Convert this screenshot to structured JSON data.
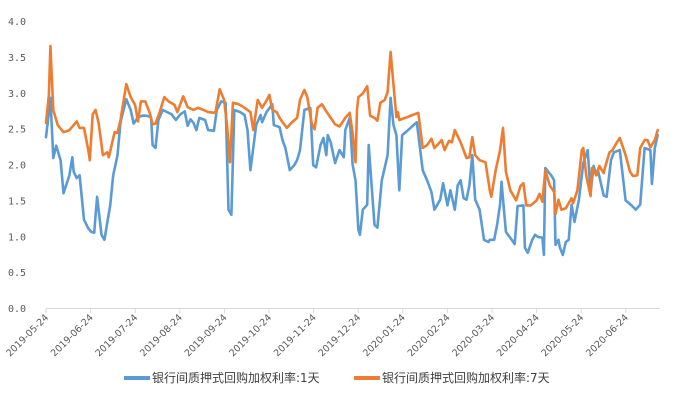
{
  "chart_data": {
    "type": "line",
    "title": "",
    "xlabel": "",
    "ylabel": "",
    "x_unit": "days since 2019-05-24",
    "xlim": [
      0,
      419
    ],
    "ylim": [
      0,
      4
    ],
    "y_ticks": [
      "0.0",
      "0.5",
      "1.0",
      "1.5",
      "2.0",
      "2.5",
      "3.0",
      "3.5",
      "4.0"
    ],
    "x_tick_labels": [
      "2019-05-24",
      "2019-06-24",
      "2019-07-24",
      "2019-08-24",
      "2019-09-24",
      "2019-10-24",
      "2019-11-24",
      "2019-12-24",
      "2020-01-24",
      "2020-02-24",
      "2020-03-24",
      "2020-04-24",
      "2020-05-24",
      "2020-06-24"
    ],
    "grid": false,
    "legend_position": "bottom",
    "series": [
      {
        "name": "银行间质押式回购加权利率:1天",
        "color": "#5B9BD5",
        "x": [
          0,
          2,
          3,
          5,
          7,
          10,
          12,
          16,
          18,
          19,
          21,
          23,
          26,
          29,
          31,
          33,
          35,
          38,
          40,
          44,
          46,
          49,
          51,
          55,
          58,
          60,
          63,
          66,
          69,
          72,
          73,
          75,
          77,
          80,
          84,
          86,
          89,
          92,
          95,
          97,
          99,
          101,
          103,
          105,
          109,
          111,
          115,
          117,
          120,
          123,
          125,
          127,
          129,
          133,
          136,
          138,
          140,
          144,
          147,
          148,
          151,
          155,
          156,
          160,
          162,
          164,
          167,
          170,
          172,
          174,
          177,
          181,
          183,
          185,
          188,
          190,
          192,
          193,
          195,
          198,
          201,
          204,
          205,
          208,
          210,
          212,
          214,
          215,
          217,
          220,
          221,
          223,
          225,
          227,
          230,
          234,
          236,
          238,
          240,
          242,
          244,
          248,
          254,
          258,
          261,
          264,
          266,
          270,
          272,
          275,
          277,
          280,
          282,
          284,
          286,
          288,
          290,
          292,
          294,
          297,
          300,
          303,
          304,
          307,
          309,
          311,
          312,
          315,
          319,
          321,
          323,
          327,
          328,
          330,
          333,
          335,
          337,
          340,
          341,
          342,
          346,
          348,
          349,
          351,
          352,
          354,
          356,
          358,
          360,
          362,
          365,
          368,
          371,
          373,
          375,
          377,
          378,
          382,
          384,
          387,
          389,
          393,
          397,
          401,
          404,
          407,
          410,
          414,
          415,
          417,
          419
        ],
        "values": [
          2.38,
          2.73,
          2.93,
          2.09,
          2.26,
          2.06,
          1.6,
          1.85,
          2.1,
          1.9,
          1.81,
          1.85,
          1.23,
          1.11,
          1.06,
          1.05,
          1.55,
          1.02,
          0.95,
          1.43,
          1.85,
          2.13,
          2.59,
          2.91,
          2.76,
          2.57,
          2.66,
          2.68,
          2.68,
          2.66,
          2.27,
          2.23,
          2.62,
          2.76,
          2.72,
          2.7,
          2.62,
          2.7,
          2.74,
          2.54,
          2.63,
          2.58,
          2.48,
          2.65,
          2.62,
          2.48,
          2.47,
          2.76,
          2.88,
          2.86,
          1.37,
          1.3,
          2.76,
          2.73,
          2.69,
          2.48,
          1.92,
          2.55,
          2.69,
          2.59,
          2.73,
          2.84,
          2.55,
          2.52,
          2.34,
          2.23,
          1.92,
          1.99,
          2.06,
          2.2,
          2.76,
          2.79,
          1.99,
          1.96,
          2.27,
          2.37,
          2.13,
          2.41,
          2.31,
          2.02,
          2.2,
          2.1,
          2.48,
          2.65,
          2.0,
          1.78,
          1.09,
          1.02,
          1.37,
          1.44,
          2.27,
          1.71,
          1.16,
          1.12,
          1.78,
          2.13,
          2.93,
          2.55,
          2.41,
          1.64,
          2.41,
          2.48,
          2.59,
          1.92,
          1.78,
          1.62,
          1.37,
          1.51,
          1.74,
          1.43,
          1.64,
          1.37,
          1.71,
          1.78,
          1.53,
          1.51,
          1.71,
          2.13,
          1.51,
          1.37,
          0.95,
          0.92,
          0.95,
          0.95,
          1.16,
          1.45,
          1.76,
          1.06,
          0.95,
          0.89,
          1.42,
          1.43,
          0.84,
          0.77,
          0.95,
          1.02,
          0.99,
          0.98,
          0.74,
          1.95,
          1.85,
          1.78,
          0.88,
          0.95,
          0.84,
          0.74,
          0.92,
          0.95,
          1.44,
          1.2,
          1.51,
          2.02,
          2.2,
          1.6,
          1.98,
          1.85,
          1.92,
          1.57,
          1.55,
          2.06,
          2.17,
          2.2,
          1.5,
          1.43,
          1.37,
          1.44,
          2.23,
          2.2,
          1.73,
          2.23,
          2.41
        ]
      },
      {
        "name": "银行间质押式回购加权利率:7天",
        "color": "#ED7D31",
        "x": [
          0,
          2,
          3,
          5,
          8,
          12,
          16,
          21,
          23,
          26,
          29,
          30,
          32,
          34,
          36,
          39,
          42,
          43,
          47,
          49,
          51,
          55,
          58,
          61,
          63,
          65,
          68,
          71,
          73,
          75,
          78,
          81,
          84,
          88,
          90,
          94,
          97,
          101,
          104,
          108,
          111,
          116,
          119,
          122,
          124,
          126,
          128,
          132,
          136,
          140,
          142,
          145,
          148,
          151,
          153,
          155,
          158,
          160,
          162,
          165,
          168,
          172,
          174,
          177,
          179,
          182,
          184,
          186,
          189,
          192,
          195,
          198,
          201,
          205,
          208,
          210,
          212,
          213,
          214,
          217,
          220,
          222,
          225,
          227,
          229,
          232,
          234,
          236,
          238,
          240,
          241,
          242,
          246,
          251,
          255,
          258,
          261,
          264,
          266,
          268,
          271,
          273,
          276,
          278,
          280,
          284,
          286,
          288,
          290,
          292,
          294,
          297,
          301,
          304,
          305,
          308,
          311,
          313,
          315,
          318,
          322,
          325,
          327,
          329,
          332,
          336,
          338,
          340,
          342,
          345,
          348,
          349,
          351,
          353,
          356,
          360,
          361,
          364,
          367,
          368,
          370,
          373,
          374,
          377,
          379,
          382,
          383,
          386,
          388,
          391,
          393,
          397,
          400,
          402,
          405,
          407,
          410,
          412,
          414,
          417,
          419
        ],
        "values": [
          2.58,
          2.97,
          3.65,
          2.76,
          2.55,
          2.45,
          2.48,
          2.6,
          2.51,
          2.51,
          2.2,
          2.06,
          2.7,
          2.76,
          2.58,
          2.13,
          2.17,
          2.1,
          2.45,
          2.44,
          2.62,
          3.12,
          2.94,
          2.83,
          2.6,
          2.88,
          2.88,
          2.72,
          2.56,
          2.57,
          2.74,
          2.94,
          2.88,
          2.83,
          2.73,
          2.95,
          2.8,
          2.76,
          2.79,
          2.76,
          2.73,
          2.72,
          3.05,
          2.9,
          2.55,
          2.03,
          2.86,
          2.84,
          2.79,
          2.73,
          2.48,
          2.9,
          2.79,
          2.89,
          2.97,
          2.76,
          2.73,
          2.65,
          2.59,
          2.51,
          2.58,
          2.65,
          2.9,
          3.04,
          2.94,
          2.57,
          2.49,
          2.79,
          2.84,
          2.74,
          2.65,
          2.56,
          2.53,
          2.65,
          2.72,
          2.44,
          2.03,
          2.76,
          2.94,
          2.99,
          3.09,
          2.68,
          2.65,
          2.61,
          2.86,
          2.9,
          3.01,
          3.57,
          3.11,
          2.66,
          2.73,
          2.62,
          2.65,
          2.69,
          2.72,
          2.23,
          2.27,
          2.36,
          2.23,
          2.27,
          2.34,
          2.2,
          2.33,
          2.31,
          2.48,
          2.31,
          2.2,
          2.09,
          2.1,
          2.38,
          2.13,
          2.06,
          2.03,
          1.64,
          1.55,
          1.92,
          2.2,
          2.51,
          1.9,
          1.64,
          1.5,
          1.7,
          1.74,
          1.43,
          1.43,
          1.5,
          1.59,
          1.48,
          1.92,
          1.71,
          1.62,
          1.31,
          1.51,
          1.37,
          1.39,
          1.53,
          1.46,
          1.64,
          2.2,
          2.23,
          1.85,
          1.56,
          1.95,
          1.85,
          1.98,
          1.88,
          1.97,
          2.17,
          2.2,
          2.31,
          2.37,
          2.13,
          1.9,
          1.84,
          1.85,
          2.23,
          2.34,
          2.34,
          2.24,
          2.34,
          2.48
        ]
      }
    ]
  }
}
